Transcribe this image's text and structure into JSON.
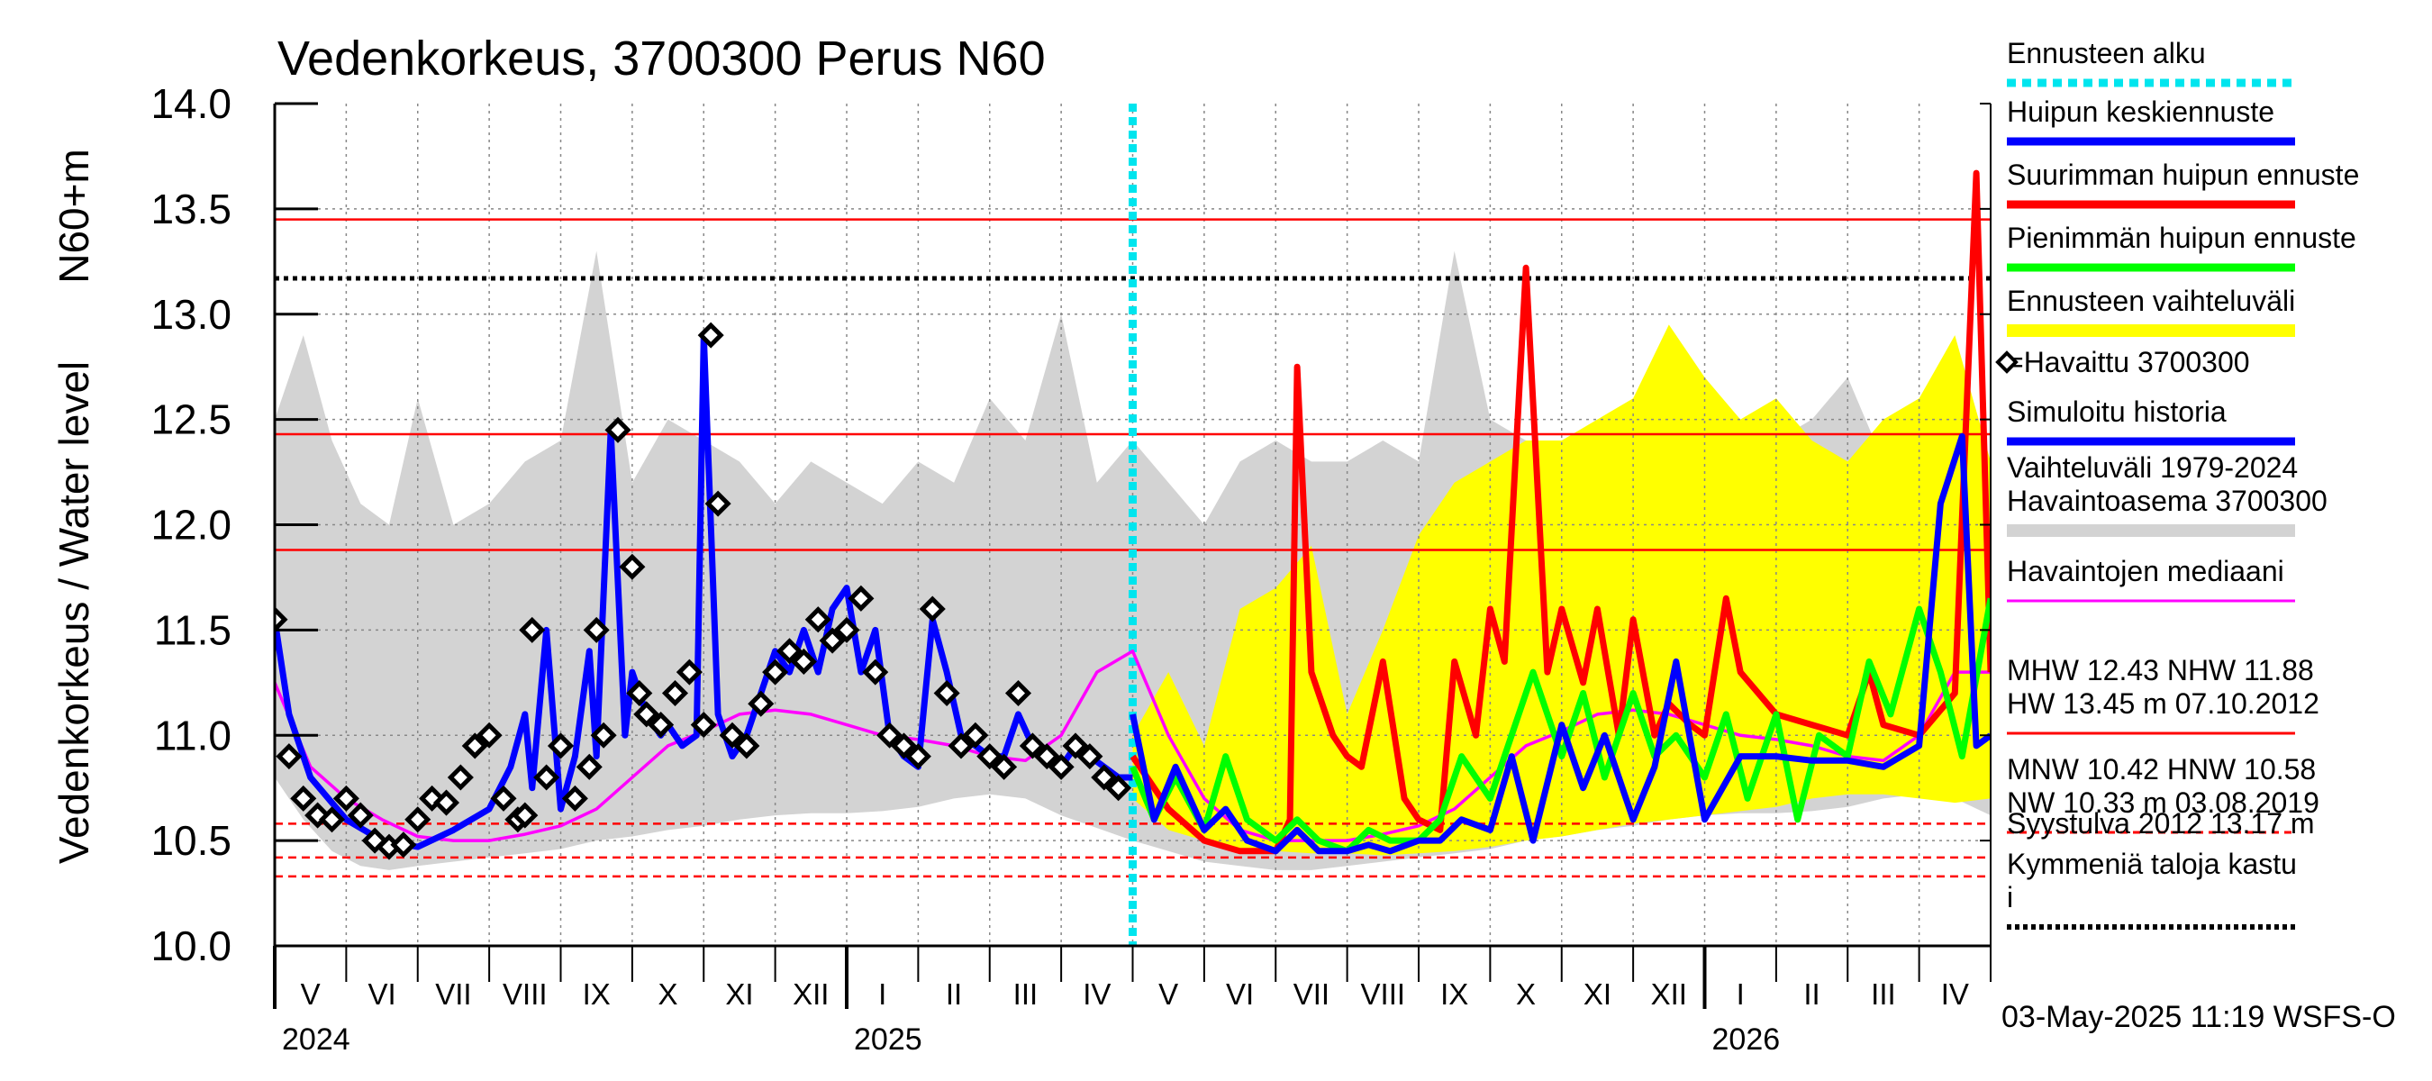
{
  "chart_data": {
    "type": "line",
    "title": "Vedenkorkeus, 3700300 Perus N60",
    "ylabel_main": "Vedenkorkeus / Water level",
    "ylabel_unit": "N60+m",
    "ylim": [
      10.0,
      14.0
    ],
    "yticks": [
      10.0,
      10.5,
      11.0,
      11.5,
      12.0,
      12.5,
      13.0,
      13.5,
      14.0
    ],
    "ytick_labels": [
      "10.0",
      "10.5",
      "11.0",
      "11.5",
      "12.0",
      "12.5",
      "13.0",
      "13.5",
      "14.0"
    ],
    "x_months": [
      "V",
      "VI",
      "VII",
      "VIII",
      "IX",
      "X",
      "XI",
      "XII",
      "I",
      "II",
      "III",
      "IV",
      "V",
      "VI",
      "VII",
      "VIII",
      "IX",
      "X",
      "XI",
      "XII",
      "I",
      "II",
      "III",
      "IV"
    ],
    "x_start_month": "2024-05",
    "x_years": [
      {
        "label": "2024",
        "month_index": 0
      },
      {
        "label": "2025",
        "month_index": 8
      },
      {
        "label": "2026",
        "month_index": 20
      }
    ],
    "forecast_start_month": 12,
    "reference_lines": [
      {
        "name": "HW",
        "value": 13.45,
        "color": "#ff0000",
        "style": "solid"
      },
      {
        "name": "Syystulva 2012",
        "value": 13.17,
        "color": "#000000",
        "style": "dotted"
      },
      {
        "name": "MHW",
        "value": 12.43,
        "color": "#ff0000",
        "style": "solid"
      },
      {
        "name": "NHW",
        "value": 11.88,
        "color": "#ff0000",
        "style": "solid"
      },
      {
        "name": "HNW",
        "value": 10.58,
        "color": "#ff0000",
        "style": "dashed"
      },
      {
        "name": "MNW",
        "value": 10.42,
        "color": "#ff0000",
        "style": "dashed"
      },
      {
        "name": "NW",
        "value": 10.33,
        "color": "#ff0000",
        "style": "dashed"
      }
    ],
    "series": [
      {
        "name": "Vaihteluväli 1979-2024 Havaintoasema 3700300",
        "kind": "band",
        "color": "#d3d3d3",
        "x": [
          0,
          0.4,
          0.8,
          1.2,
          1.6,
          2,
          2.5,
          3,
          3.5,
          4,
          4.5,
          5,
          5.5,
          6,
          6.5,
          7,
          7.5,
          8,
          8.5,
          9,
          9.5,
          10,
          10.5,
          11,
          11.5,
          12,
          12.5,
          13,
          13.5,
          14,
          14.5,
          15,
          15.5,
          16,
          16.5,
          17,
          17.5,
          18,
          18.5,
          19,
          19.5,
          20,
          20.5,
          21,
          21.5,
          22,
          22.5,
          23,
          23.5,
          24
        ],
        "upper": [
          12.5,
          12.9,
          12.4,
          12.1,
          12.0,
          12.6,
          12.0,
          12.1,
          12.3,
          12.4,
          13.3,
          12.2,
          12.5,
          12.4,
          12.3,
          12.1,
          12.3,
          12.2,
          12.1,
          12.3,
          12.2,
          12.6,
          12.4,
          13.0,
          12.2,
          12.4,
          12.2,
          12.0,
          12.3,
          12.4,
          12.3,
          12.3,
          12.4,
          12.3,
          13.3,
          12.5,
          12.4,
          12.3,
          12.5,
          12.4,
          12.3,
          12.4,
          12.2,
          12.4,
          12.5,
          12.7,
          12.3,
          12.4,
          12.1,
          11.6
        ],
        "lower": [
          10.8,
          10.6,
          10.45,
          10.38,
          10.36,
          10.38,
          10.4,
          10.42,
          10.44,
          10.46,
          10.5,
          10.52,
          10.55,
          10.57,
          10.6,
          10.62,
          10.63,
          10.63,
          10.64,
          10.66,
          10.7,
          10.72,
          10.7,
          10.62,
          10.56,
          10.5,
          10.45,
          10.4,
          10.38,
          10.36,
          10.36,
          10.38,
          10.4,
          10.42,
          10.44,
          10.46,
          10.5,
          10.52,
          10.55,
          10.57,
          10.6,
          10.62,
          10.63,
          10.63,
          10.64,
          10.66,
          10.7,
          10.72,
          10.7,
          10.62
        ]
      },
      {
        "name": "Ennusteen vaihteluväli",
        "kind": "band",
        "color": "#ffff00",
        "x": [
          12,
          12.5,
          13,
          13.5,
          14,
          14.5,
          15,
          15.5,
          16,
          16.5,
          17,
          17.5,
          18,
          18.5,
          19,
          19.5,
          20,
          20.5,
          21,
          21.5,
          22,
          22.5,
          23,
          23.5,
          24
        ],
        "upper": [
          11.0,
          11.3,
          10.95,
          11.6,
          11.7,
          11.9,
          11.1,
          11.5,
          11.95,
          12.2,
          12.3,
          12.4,
          12.4,
          12.5,
          12.6,
          12.95,
          12.7,
          12.5,
          12.6,
          12.4,
          12.3,
          12.5,
          12.6,
          12.9,
          12.3
        ],
        "lower": [
          10.7,
          10.55,
          10.5,
          10.46,
          10.45,
          10.44,
          10.44,
          10.43,
          10.44,
          10.45,
          10.47,
          10.5,
          10.52,
          10.55,
          10.58,
          10.6,
          10.62,
          10.64,
          10.66,
          10.7,
          10.72,
          10.72,
          10.7,
          10.68,
          10.7
        ]
      },
      {
        "name": "Havaintojen mediaani",
        "kind": "line",
        "color": "#ff00ff",
        "x": [
          0,
          0.5,
          1,
          1.5,
          2,
          2.5,
          3,
          3.5,
          4,
          4.5,
          5,
          5.5,
          6,
          6.5,
          7,
          7.5,
          8,
          8.5,
          9,
          9.5,
          10,
          10.5,
          11,
          11.5,
          12,
          12.5,
          13,
          13.5,
          14,
          14.5,
          15,
          15.5,
          16,
          16.5,
          17,
          17.5,
          18,
          18.5,
          19,
          19.5,
          20,
          20.5,
          21,
          21.5,
          22,
          22.5,
          23,
          23.5,
          24
        ],
        "values": [
          11.25,
          10.85,
          10.7,
          10.6,
          10.52,
          10.5,
          10.5,
          10.53,
          10.57,
          10.65,
          10.8,
          10.95,
          11.02,
          11.1,
          11.12,
          11.1,
          11.05,
          11.0,
          10.98,
          10.95,
          10.9,
          10.88,
          11.0,
          11.3,
          11.4,
          11.0,
          10.7,
          10.55,
          10.5,
          10.5,
          10.5,
          10.53,
          10.57,
          10.65,
          10.8,
          10.95,
          11.02,
          11.1,
          11.12,
          11.1,
          11.05,
          11.0,
          10.98,
          10.95,
          10.9,
          10.88,
          11.0,
          11.3,
          11.3
        ]
      },
      {
        "name": "Simuloitu historia",
        "kind": "line",
        "color": "#0000ff",
        "x": [
          0,
          0.2,
          0.5,
          1,
          1.5,
          2,
          2.5,
          3,
          3.3,
          3.5,
          3.6,
          3.8,
          4,
          4.2,
          4.4,
          4.5,
          4.7,
          4.9,
          5,
          5.2,
          5.4,
          5.5,
          5.7,
          5.9,
          6,
          6.2,
          6.4,
          6.6,
          6.8,
          7,
          7.2,
          7.4,
          7.6,
          7.8,
          8,
          8.2,
          8.4,
          8.6,
          8.8,
          9,
          9.2,
          9.4,
          9.6,
          9.8,
          10,
          10.2,
          10.4,
          10.6,
          10.8,
          11,
          11.2,
          11.4,
          11.6,
          11.8,
          12
        ],
        "values": [
          11.55,
          11.1,
          10.8,
          10.6,
          10.5,
          10.47,
          10.55,
          10.65,
          10.85,
          11.1,
          10.75,
          11.5,
          10.65,
          10.9,
          11.4,
          10.9,
          12.45,
          11.0,
          11.3,
          11.1,
          11.0,
          11.05,
          10.95,
          11.0,
          12.9,
          11.1,
          10.9,
          11.0,
          11.2,
          11.4,
          11.3,
          11.5,
          11.3,
          11.6,
          11.7,
          11.3,
          11.5,
          11.0,
          10.9,
          10.85,
          11.55,
          11.3,
          11.0,
          10.95,
          10.9,
          10.9,
          11.1,
          10.95,
          10.9,
          10.85,
          10.95,
          10.9,
          10.85,
          10.8,
          10.8
        ]
      },
      {
        "name": "Suurimman huipun ennuste",
        "kind": "line",
        "color": "#ff0000",
        "x": [
          12,
          12.2,
          12.5,
          13,
          13.5,
          14,
          14.2,
          14.3,
          14.5,
          14.8,
          15,
          15.2,
          15.5,
          15.8,
          16,
          16.3,
          16.5,
          16.8,
          17,
          17.2,
          17.5,
          17.8,
          18,
          18.3,
          18.5,
          18.8,
          19,
          19.3,
          19.5,
          19.8,
          20,
          20.3,
          20.5,
          21,
          21.5,
          22,
          22.3,
          22.5,
          23,
          23.5,
          23.8,
          24
        ],
        "values": [
          10.9,
          10.8,
          10.65,
          10.5,
          10.45,
          10.45,
          10.6,
          12.75,
          11.3,
          11.0,
          10.9,
          10.85,
          11.35,
          10.7,
          10.6,
          10.55,
          11.35,
          11.0,
          11.6,
          11.35,
          13.22,
          11.3,
          11.6,
          11.25,
          11.6,
          11.0,
          11.55,
          11.0,
          11.15,
          11.05,
          11.0,
          11.65,
          11.3,
          11.1,
          11.05,
          11.0,
          11.3,
          11.05,
          11.0,
          11.2,
          13.67,
          11.3
        ]
      },
      {
        "name": "Pienimmän huipun ennuste",
        "kind": "line",
        "color": "#00ff00",
        "x": [
          12,
          12.3,
          12.6,
          13,
          13.3,
          13.6,
          14,
          14.3,
          14.6,
          15,
          15.3,
          15.6,
          16,
          16.3,
          16.6,
          17,
          17.3,
          17.6,
          18,
          18.3,
          18.6,
          19,
          19.3,
          19.6,
          20,
          20.3,
          20.6,
          21,
          21.3,
          21.6,
          22,
          22.3,
          22.6,
          23,
          23.3,
          23.6,
          24
        ],
        "values": [
          10.85,
          10.6,
          10.8,
          10.55,
          10.9,
          10.6,
          10.5,
          10.6,
          10.5,
          10.45,
          10.55,
          10.5,
          10.5,
          10.6,
          10.9,
          10.7,
          11.0,
          11.3,
          10.9,
          11.2,
          10.8,
          11.2,
          10.9,
          11.0,
          10.8,
          11.1,
          10.7,
          11.1,
          10.6,
          11.0,
          10.9,
          11.35,
          11.1,
          11.6,
          11.3,
          10.9,
          11.65
        ]
      },
      {
        "name": "Huipun keskiennuste",
        "kind": "line",
        "color": "#0000ff",
        "x": [
          12,
          12.3,
          12.6,
          13,
          13.3,
          13.6,
          14,
          14.3,
          14.6,
          15,
          15.3,
          15.6,
          16,
          16.3,
          16.6,
          17,
          17.3,
          17.6,
          18,
          18.3,
          18.6,
          19,
          19.3,
          19.6,
          20,
          20.5,
          21,
          21.5,
          22,
          22.5,
          23,
          23.3,
          23.6,
          23.8,
          24
        ],
        "values": [
          11.1,
          10.6,
          10.85,
          10.55,
          10.65,
          10.5,
          10.45,
          10.55,
          10.45,
          10.45,
          10.48,
          10.45,
          10.5,
          10.5,
          10.6,
          10.55,
          10.9,
          10.5,
          11.05,
          10.75,
          11.0,
          10.6,
          10.85,
          11.35,
          10.6,
          10.9,
          10.9,
          10.88,
          10.88,
          10.85,
          10.95,
          12.1,
          12.42,
          10.95,
          11.0
        ]
      },
      {
        "name": "Havaittu 3700300",
        "kind": "markers",
        "color": "#000000",
        "x": [
          0,
          0.2,
          0.4,
          0.6,
          0.8,
          1,
          1.2,
          1.4,
          1.6,
          1.8,
          2,
          2.2,
          2.4,
          2.6,
          2.8,
          3,
          3.2,
          3.4,
          3.5,
          3.6,
          3.8,
          4,
          4.2,
          4.4,
          4.5,
          4.6,
          4.8,
          5,
          5.1,
          5.2,
          5.4,
          5.6,
          5.8,
          6,
          6.1,
          6.2,
          6.4,
          6.6,
          6.8,
          7,
          7.2,
          7.4,
          7.6,
          7.8,
          8,
          8.2,
          8.4,
          8.6,
          8.8,
          9,
          9.2,
          9.4,
          9.6,
          9.8,
          10,
          10.2,
          10.4,
          10.6,
          10.8,
          11,
          11.2,
          11.4,
          11.6,
          11.8
        ],
        "values": [
          11.55,
          10.9,
          10.7,
          10.62,
          10.6,
          10.7,
          10.62,
          10.5,
          10.47,
          10.48,
          10.6,
          10.7,
          10.68,
          10.8,
          10.95,
          11.0,
          10.7,
          10.6,
          10.62,
          11.5,
          10.8,
          10.95,
          10.7,
          10.85,
          11.5,
          11.0,
          12.45,
          11.8,
          11.2,
          11.1,
          11.05,
          11.2,
          11.3,
          11.05,
          12.9,
          12.1,
          11.0,
          10.95,
          11.15,
          11.3,
          11.4,
          11.35,
          11.55,
          11.45,
          11.5,
          11.65,
          11.3,
          11.0,
          10.95,
          10.9,
          11.6,
          11.2,
          10.95,
          11.0,
          10.9,
          10.85,
          11.2,
          10.95,
          10.9,
          10.85,
          10.95,
          10.9,
          10.8,
          10.75
        ]
      }
    ],
    "legend": [
      {
        "label": "Ennusteen alku",
        "color": "#00e5ee",
        "style": "dotted-thick"
      },
      {
        "label": "Huipun keskiennuste",
        "color": "#0000ff",
        "style": "solid"
      },
      {
        "label": "Suurimman huipun ennuste",
        "color": "#ff0000",
        "style": "solid"
      },
      {
        "label": "Pienimmän huipun ennuste",
        "color": "#00ff00",
        "style": "solid"
      },
      {
        "label": "Ennusteen vaihteluväli",
        "color": "#ffff00",
        "style": "thick"
      },
      {
        "label": "=Havaittu 3700300",
        "color": "#000000",
        "style": "marker"
      },
      {
        "label": "Simuloitu historia",
        "color": "#0000ff",
        "style": "solid"
      },
      {
        "label": "Vaihteluväli 1979-2024\n Havaintoasema 3700300",
        "color": "#d3d3d3",
        "style": "thick"
      },
      {
        "label": "Havaintojen mediaani",
        "color": "#ff00ff",
        "style": "thin"
      },
      {
        "label": "MHW  12.43 NHW  11.88\nHW  13.45 m 07.10.2012",
        "color": "#ff0000",
        "style": "thin"
      },
      {
        "label": "MNW  10.42 HNW  10.58\nNW  10.33 m 03.08.2019",
        "color": "#ff0000",
        "style": "dashed"
      },
      {
        "label": "Syystulva 2012 13.17 m",
        "color": "#000000",
        "style": "none"
      },
      {
        "label": "Kymmeniä taloja kastu\ni",
        "color": "#000000",
        "style": "dotted"
      }
    ],
    "footer": "03-May-2025 11:19 WSFS-O"
  }
}
